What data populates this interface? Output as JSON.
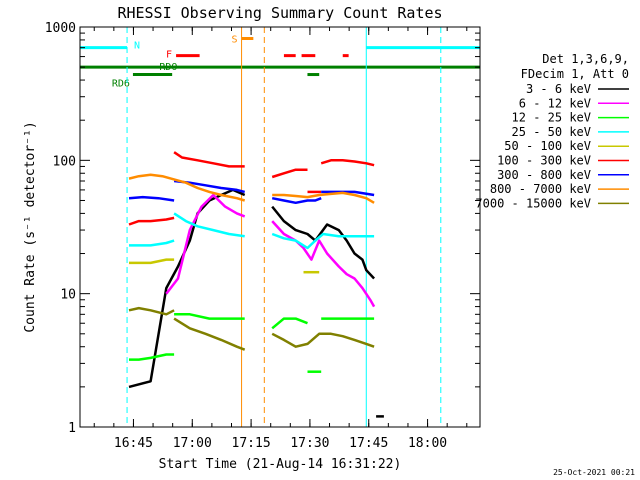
{
  "chart_data": {
    "type": "line",
    "title": "RHESSI Observing Summary Count Rates",
    "xlabel": "Start Time (21-Aug-14 16:31:22)",
    "ylabel": "Count Rate (s⁻¹ detector⁻¹)",
    "x_units": "minutes after 16:31:22 UT",
    "xlim": [
      0,
      102
    ],
    "ylim": [
      1,
      1000
    ],
    "yscale": "log",
    "x_ticks": [
      {
        "x": 13.63,
        "label": "16:45"
      },
      {
        "x": 28.63,
        "label": "17:00"
      },
      {
        "x": 43.63,
        "label": "17:15"
      },
      {
        "x": 58.63,
        "label": "17:30"
      },
      {
        "x": 73.63,
        "label": "17:45"
      },
      {
        "x": 88.63,
        "label": "18:00"
      }
    ],
    "y_ticks": [
      {
        "y": 1,
        "label": "1"
      },
      {
        "y": 10,
        "label": "10"
      },
      {
        "y": 100,
        "label": "100"
      },
      {
        "y": 1000,
        "label": "1000"
      }
    ],
    "legend_position": "right",
    "legend_header": [
      "Det 1,3,6,9,",
      "FDecim 1, Att 0"
    ],
    "series": [
      {
        "name": "3 - 6 keV",
        "color": "#000000",
        "segments": [
          {
            "x": [
              12.5,
              18,
              22,
              25,
              28,
              30,
              33,
              36,
              39,
              42
            ],
            "y": [
              2.0,
              2.2,
              11,
              16,
              25,
              40,
              50,
              55,
              60,
              55
            ]
          },
          {
            "x": [
              49,
              52,
              55,
              58,
              60,
              63,
              66,
              68,
              70,
              72,
              73,
              75
            ],
            "y": [
              45,
              35,
              30,
              28,
              25,
              33,
              30,
              25,
              20,
              18,
              15,
              13
            ]
          },
          {
            "x": [
              75.5,
              77.5
            ],
            "y": [
              1.2,
              1.2
            ]
          }
        ]
      },
      {
        "name": "6 - 12 keV",
        "color": "#ff00ff",
        "segments": [
          {
            "x": [
              22,
              25,
              28,
              31,
              34,
              37,
              40,
              42
            ],
            "y": [
              10,
              13,
              30,
              45,
              55,
              45,
              40,
              38
            ]
          },
          {
            "x": [
              49,
              52,
              55,
              57,
              59,
              61,
              63,
              66,
              68,
              70,
              72,
              74,
              75
            ],
            "y": [
              35,
              28,
              25,
              22,
              18,
              25,
              20,
              16,
              14,
              13,
              11,
              9,
              8
            ]
          }
        ]
      },
      {
        "name": "12 - 25 keV",
        "color": "#00ff00",
        "segments": [
          {
            "x": [
              12.5,
              15,
              18,
              22,
              24
            ],
            "y": [
              3.2,
              3.2,
              3.3,
              3.5,
              3.5
            ]
          },
          {
            "x": [
              24,
              28,
              33,
              38,
              42
            ],
            "y": [
              7,
              7,
              6.5,
              6.5,
              6.5
            ]
          },
          {
            "x": [
              49,
              52,
              55,
              58
            ],
            "y": [
              5.5,
              6.5,
              6.5,
              6.0
            ]
          },
          {
            "x": [
              58,
              60,
              61.5
            ],
            "y": [
              2.6,
              2.6,
              2.6
            ]
          },
          {
            "x": [
              61.5,
              66,
              70,
              75
            ],
            "y": [
              6.5,
              6.5,
              6.5,
              6.5
            ]
          }
        ]
      },
      {
        "name": "25 - 50 keV",
        "color": "#00ffff",
        "segments": [
          {
            "x": [
              12.5,
              18,
              22,
              24
            ],
            "y": [
              23,
              23,
              24,
              25
            ]
          },
          {
            "x": [
              24,
              27,
              30,
              34,
              38,
              42
            ],
            "y": [
              40,
              35,
              32,
              30,
              28,
              27
            ]
          },
          {
            "x": [
              49,
              52,
              55,
              58,
              60,
              62,
              66,
              70,
              75
            ],
            "y": [
              28,
              26,
              25,
              22,
              25,
              28,
              27,
              27,
              27
            ]
          }
        ]
      },
      {
        "name": "50 - 100 keV",
        "color": "#c8c800",
        "segments": [
          {
            "x": [
              12.5,
              15,
              18,
              22,
              24
            ],
            "y": [
              17,
              17,
              17,
              18,
              18
            ]
          },
          {
            "x": [
              57,
              59,
              61
            ],
            "y": [
              14.5,
              14.5,
              14.5
            ]
          }
        ]
      },
      {
        "name": "100 - 300 keV",
        "color": "#ff0000",
        "segments": [
          {
            "x": [
              12.5,
              15,
              18,
              22,
              24
            ],
            "y": [
              33,
              35,
              35,
              36,
              37
            ]
          },
          {
            "x": [
              24,
              26,
              30,
              34,
              38,
              42
            ],
            "y": [
              115,
              105,
              100,
              95,
              90,
              90
            ]
          },
          {
            "x": [
              49,
              52,
              55,
              57,
              58
            ],
            "y": [
              75,
              80,
              85,
              85,
              85
            ]
          },
          {
            "x": [
              58,
              60,
              61.5
            ],
            "y": [
              58,
              58,
              58
            ]
          },
          {
            "x": [
              61.5,
              64,
              67,
              70,
              73,
              75
            ],
            "y": [
              95,
              100,
              100,
              98,
              95,
              92
            ]
          }
        ]
      },
      {
        "name": "300 - 800 keV",
        "color": "#0000ff",
        "segments": [
          {
            "x": [
              12.5,
              16,
              20,
              24
            ],
            "y": [
              52,
              53,
              52,
              50
            ]
          },
          {
            "x": [
              24,
              28,
              32,
              36,
              40,
              42
            ],
            "y": [
              70,
              68,
              65,
              62,
              60,
              58
            ]
          },
          {
            "x": [
              49,
              52,
              55,
              58,
              60,
              61.5
            ],
            "y": [
              52,
              50,
              48,
              50,
              50,
              52
            ]
          },
          {
            "x": [
              61.5,
              65,
              70,
              75
            ],
            "y": [
              58,
              58,
              58,
              55
            ]
          }
        ]
      },
      {
        "name": "800 - 7000 keV",
        "color": "#ff8c00",
        "segments": [
          {
            "x": [
              12.5,
              15,
              18,
              21,
              24,
              27,
              30,
              33,
              36,
              40,
              42
            ],
            "y": [
              73,
              76,
              78,
              76,
              72,
              68,
              62,
              58,
              55,
              52,
              50
            ]
          },
          {
            "x": [
              49,
              52,
              55,
              58,
              61,
              64,
              67,
              70,
              73,
              75
            ],
            "y": [
              55,
              55,
              54,
              53,
              55,
              56,
              57,
              55,
              52,
              48
            ]
          }
        ]
      },
      {
        "name": "7000 - 15000 keV",
        "color": "#808000",
        "segments": [
          {
            "x": [
              12.5,
              15,
              18,
              22,
              24
            ],
            "y": [
              7.5,
              7.8,
              7.5,
              7.0,
              7.5
            ]
          },
          {
            "x": [
              24,
              28,
              32,
              36,
              40,
              42
            ],
            "y": [
              6.5,
              5.5,
              5.0,
              4.5,
              4.0,
              3.8
            ]
          },
          {
            "x": [
              49,
              52,
              55,
              58,
              61,
              64,
              67,
              70,
              73,
              75
            ],
            "y": [
              5.0,
              4.5,
              4.0,
              4.2,
              5.0,
              5.0,
              4.8,
              4.5,
              4.2,
              4.0
            ]
          }
        ]
      }
    ],
    "flag_bars": [
      {
        "label": "N",
        "color": "#00ffff",
        "y": 700,
        "segments": [
          [
            0,
            12
          ],
          [
            73,
            102
          ]
        ]
      },
      {
        "label": "S",
        "color": "#ff8c00",
        "y": 820,
        "segments": [
          [
            41.2,
            44.2
          ]
        ]
      },
      {
        "label": "F",
        "color": "#ff0000",
        "y": 610,
        "segments": [
          [
            24.5,
            30.5
          ],
          [
            52,
            55
          ],
          [
            56.5,
            60
          ],
          [
            67,
            68.5
          ]
        ]
      },
      {
        "label": "RDO",
        "color": "#008000",
        "y": 500,
        "segments": [
          [
            0,
            102
          ]
        ]
      },
      {
        "label": "RD6",
        "color": "#008000",
        "y": 440,
        "segments": [
          [
            13.5,
            23.5
          ],
          [
            58,
            61
          ]
        ]
      }
    ],
    "vertical_lines": [
      {
        "x": 12,
        "color": "#00ffff",
        "style": "dashed"
      },
      {
        "x": 73,
        "color": "#00ffff",
        "style": "solid"
      },
      {
        "x": 92,
        "color": "#00ffff",
        "style": "dashed"
      },
      {
        "x": 0,
        "color": "#00ffff",
        "style": "solid"
      },
      {
        "x": 41.2,
        "color": "#ff8c00",
        "style": "solid"
      },
      {
        "x": 47,
        "color": "#ff8c00",
        "style": "dashed"
      }
    ],
    "timestamp": "25-Oct-2021 00:21"
  }
}
